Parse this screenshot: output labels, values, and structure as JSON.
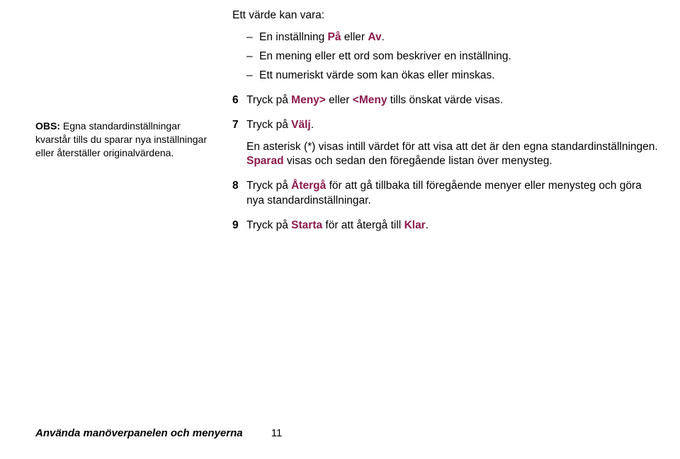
{
  "colors": {
    "accent": "#8b1a4b",
    "text": "#000000",
    "background": "#ffffff"
  },
  "note": {
    "label": "OBS:",
    "text": "Egna standardinställningar kvarstår tills du sparar nya inställningar eller återställer originalvärdena."
  },
  "intro": "Ett värde kan vara:",
  "bullets": {
    "b1_pre": "En inställning ",
    "b1_on": "På",
    "b1_mid": " eller ",
    "b1_off": "Av",
    "b1_post": ".",
    "b2": "En mening eller ett ord som beskriver en inställning.",
    "b3": "Ett numeriskt värde som kan ökas eller minskas."
  },
  "steps": {
    "s6_num": "6",
    "s6_pre": "Tryck på ",
    "s6_m1": "Meny>",
    "s6_mid": " eller ",
    "s6_m2": "<Meny",
    "s6_post": " tills önskat värde visas.",
    "s7_num": "7",
    "s7_pre": "Tryck på ",
    "s7_valj": "Välj",
    "s7_post": ".",
    "s7_cont_pre": "En asterisk (*) visas intill värdet för att visa att det är den egna standardinställningen. ",
    "s7_sparad": "Sparad",
    "s7_cont_post": " visas och sedan den föregående listan över menysteg.",
    "s8_num": "8",
    "s8_pre": "Tryck på ",
    "s8_atg": "Återgå",
    "s8_post": " för att gå tillbaka till föregående menyer eller menysteg och göra nya standardinställningar.",
    "s9_num": "9",
    "s9_pre": "Tryck på ",
    "s9_starta": "Starta",
    "s9_mid": " för att återgå till ",
    "s9_klar": "Klar",
    "s9_post": "."
  },
  "footer": {
    "title": "Använda manöverpanelen och menyerna",
    "page": "11"
  }
}
